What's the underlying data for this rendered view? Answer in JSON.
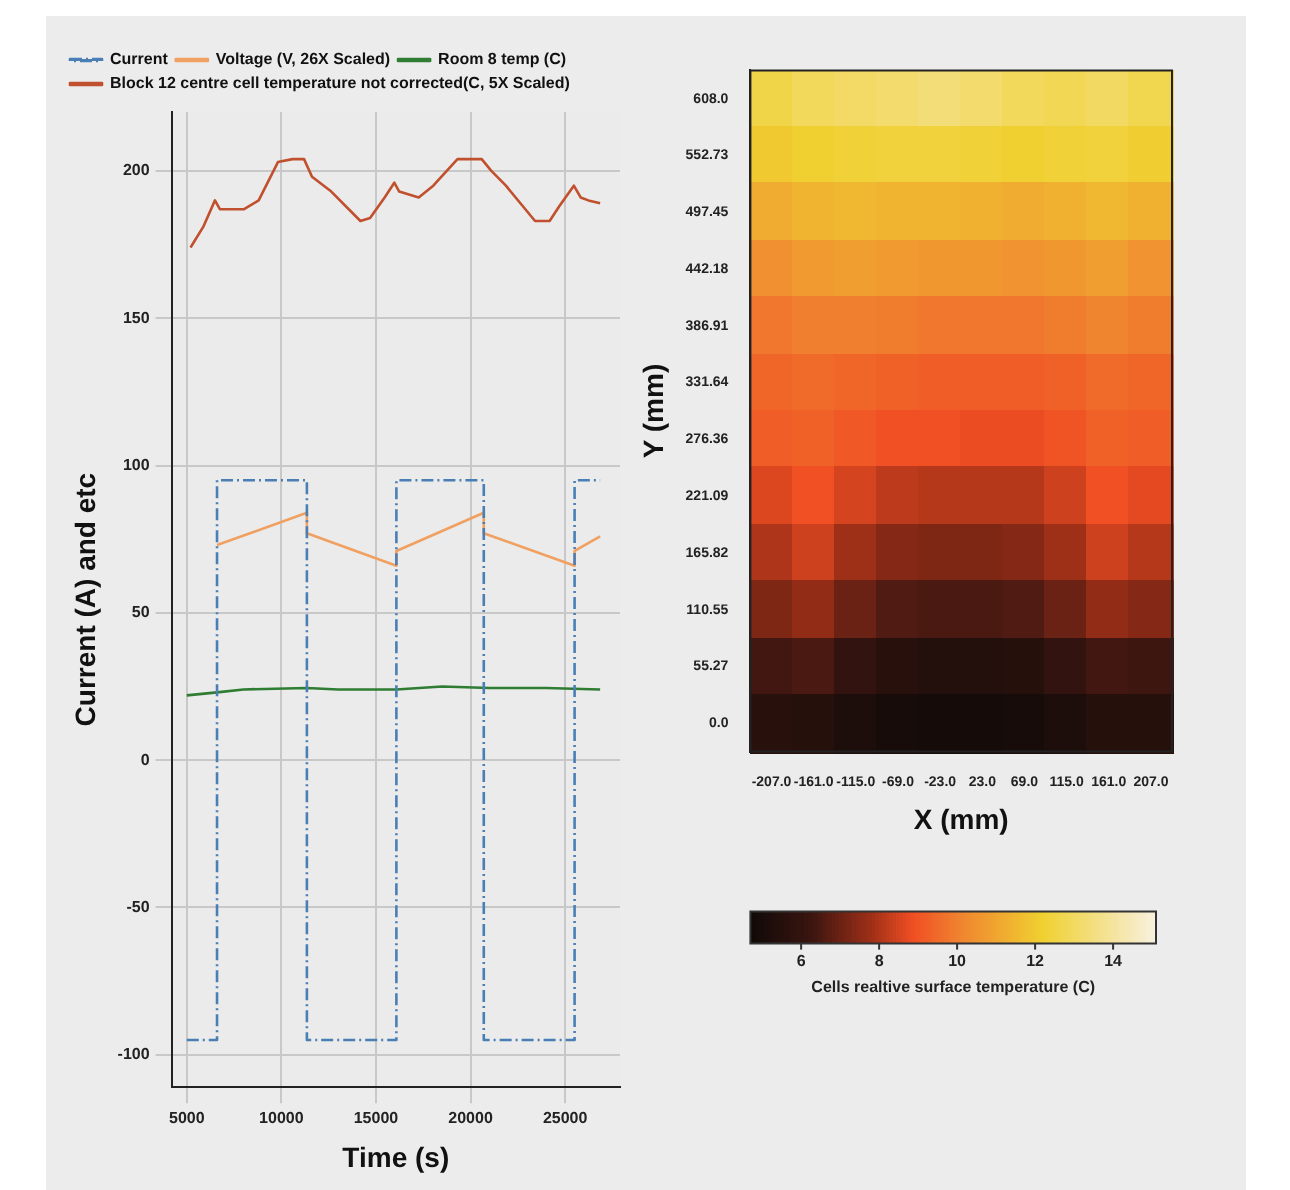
{
  "chart_data": [
    {
      "type": "line",
      "xlabel": "Time (s)",
      "ylabel": "Current (A) and etc",
      "xlim": [
        4200,
        27900
      ],
      "xticks": [
        5000,
        10000,
        15000,
        20000,
        25000
      ],
      "ylim": [
        -111,
        220
      ],
      "yticks": [
        -100,
        -50,
        0,
        50,
        100,
        150,
        200
      ],
      "grid": true,
      "legend": "top",
      "series": [
        {
          "name": "Current",
          "color": "#4a7fb5",
          "line_style": "dashed",
          "x": [
            5000,
            6600,
            6600,
            11350,
            11350,
            16080,
            16080,
            20700,
            20700,
            25500,
            25500,
            26850
          ],
          "values": [
            -95,
            -95,
            95,
            95,
            -95,
            -95,
            95,
            95,
            -95,
            -95,
            95,
            95
          ]
        },
        {
          "name": "Voltage (V, 26X Scaled)",
          "color": "#f0a060",
          "x": [
            6600,
            11350,
            11350,
            16080,
            16080,
            20700,
            20700,
            25500,
            25500,
            26850
          ],
          "values": [
            73,
            84,
            77,
            66,
            71,
            84,
            77,
            66,
            71,
            76
          ]
        },
        {
          "name": "Room 8 temp (C)",
          "color": "#2e7d32",
          "x": [
            5000,
            6600,
            8000,
            11350,
            13000,
            16080,
            18500,
            21000,
            24000,
            26850
          ],
          "values": [
            22,
            23,
            24,
            24.5,
            24,
            24,
            25,
            24.5,
            24.5,
            24
          ]
        },
        {
          "name": "Block 12 centre cell temperature not corrected(C, 5X Scaled)",
          "color": "#c0502e",
          "x": [
            5200,
            5870,
            6490,
            6750,
            8030,
            8800,
            9820,
            10590,
            11200,
            11620,
            12640,
            14180,
            14690,
            15460,
            15970,
            16230,
            17260,
            18030,
            19310,
            20590,
            21100,
            21870,
            23410,
            24180,
            24690,
            25460,
            25820,
            26230,
            26850
          ],
          "values": [
            174,
            181,
            190,
            187,
            187,
            190,
            203,
            204,
            204,
            198,
            193,
            183,
            184,
            191,
            196,
            193,
            191,
            195,
            204,
            204,
            200,
            195,
            183,
            183,
            188,
            195,
            191,
            190,
            189
          ]
        }
      ]
    },
    {
      "type": "heatmap",
      "xlabel": "X (mm)",
      "ylabel": "Y (mm)",
      "clabel": "Cells realtive surface temperature (C)",
      "categories": [
        "-207.0",
        "-161.0",
        "-115.0",
        "-69.0",
        "-23.0",
        "23.0",
        "69.0",
        "115.0",
        "161.0",
        "207.0"
      ],
      "y_categories": [
        "608.0",
        "552.73",
        "497.45",
        "442.18",
        "386.91",
        "331.64",
        "276.36",
        "221.09",
        "165.82",
        "110.55",
        "55.27",
        "0.0"
      ],
      "clim": [
        4.7,
        15.1
      ],
      "cticks": [
        6,
        8,
        10,
        12,
        14
      ],
      "cells": [
        [
          12.6,
          12.9,
          13.1,
          13.2,
          13.4,
          13.2,
          12.9,
          12.8,
          13.0,
          12.7
        ],
        [
          12.0,
          12.2,
          12.3,
          12.4,
          12.4,
          12.3,
          12.2,
          12.3,
          12.4,
          12.1
        ],
        [
          11.2,
          11.4,
          11.5,
          11.4,
          11.4,
          11.3,
          11.2,
          11.3,
          11.5,
          11.3
        ],
        [
          10.4,
          10.7,
          10.8,
          10.7,
          10.6,
          10.6,
          10.5,
          10.6,
          10.8,
          10.5
        ],
        [
          9.8,
          10.0,
          10.0,
          9.9,
          9.8,
          9.8,
          9.8,
          9.9,
          10.1,
          9.9
        ],
        [
          9.4,
          9.5,
          9.4,
          9.3,
          9.2,
          9.2,
          9.2,
          9.3,
          9.5,
          9.4
        ],
        [
          9.2,
          9.3,
          9.1,
          8.9,
          8.9,
          8.8,
          8.8,
          9.0,
          9.3,
          9.2
        ],
        [
          8.6,
          8.9,
          8.5,
          8.2,
          8.1,
          8.1,
          8.1,
          8.4,
          8.9,
          8.7
        ],
        [
          8.0,
          8.4,
          7.8,
          7.4,
          7.3,
          7.3,
          7.4,
          7.8,
          8.4,
          8.1
        ],
        [
          7.3,
          7.6,
          7.0,
          6.6,
          6.5,
          6.5,
          6.6,
          7.0,
          7.6,
          7.4
        ],
        [
          6.4,
          6.5,
          6.0,
          5.6,
          5.4,
          5.4,
          5.5,
          6.0,
          6.4,
          6.3
        ],
        [
          5.6,
          5.5,
          5.2,
          5.0,
          4.9,
          4.9,
          5.0,
          5.2,
          5.5,
          5.5
        ]
      ]
    }
  ]
}
